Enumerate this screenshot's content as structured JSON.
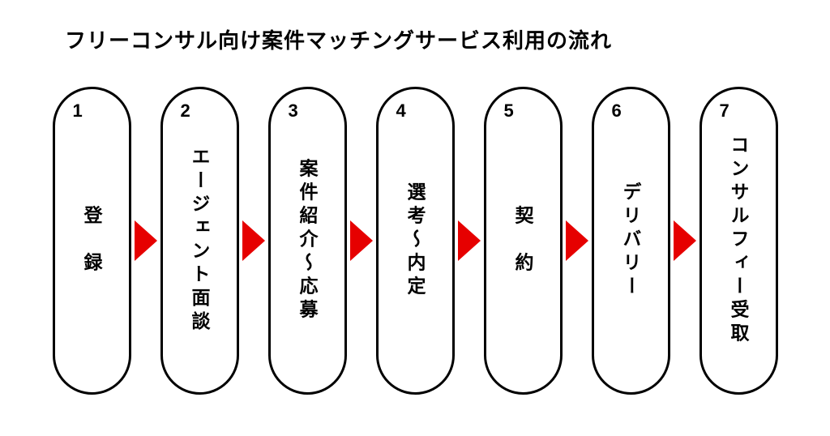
{
  "diagram": {
    "type": "flowchart",
    "title": "フリーコンサル向け案件マッチングサービス利用の流れ",
    "title_fontsize": 26,
    "title_color": "#000000",
    "background_color": "#ffffff",
    "pill_border_color": "#000000",
    "pill_border_width": 3,
    "pill_width": 97,
    "pill_height": 380,
    "pill_border_radius": 50,
    "arrow_color": "#e60000",
    "arrow_size": 28,
    "label_fontsize": 23,
    "number_fontsize": 22,
    "steps": [
      {
        "number": "1",
        "label": "登　録"
      },
      {
        "number": "2",
        "label": "エージェント面談"
      },
      {
        "number": "3",
        "label": "案件紹介～応募"
      },
      {
        "number": "4",
        "label": "選考～内定"
      },
      {
        "number": "5",
        "label": "契　約"
      },
      {
        "number": "6",
        "label": "デリバリー"
      },
      {
        "number": "7",
        "label": "コンサルフィー受取"
      }
    ]
  }
}
